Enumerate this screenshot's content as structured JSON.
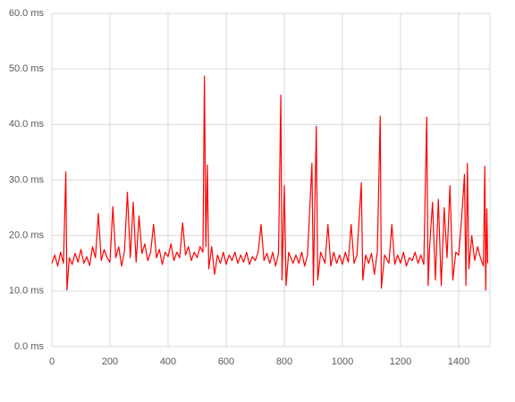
{
  "chart_data": {
    "type": "line",
    "x": [
      0,
      10,
      20,
      30,
      40,
      48,
      52,
      60,
      70,
      80,
      90,
      100,
      110,
      120,
      130,
      140,
      150,
      160,
      170,
      180,
      190,
      200,
      210,
      220,
      230,
      240,
      250,
      260,
      270,
      280,
      290,
      300,
      310,
      320,
      330,
      340,
      350,
      360,
      370,
      380,
      390,
      400,
      410,
      420,
      430,
      440,
      450,
      460,
      470,
      480,
      490,
      500,
      510,
      520,
      525,
      530,
      535,
      540,
      550,
      560,
      570,
      580,
      590,
      600,
      610,
      620,
      630,
      640,
      650,
      660,
      670,
      680,
      690,
      700,
      710,
      720,
      730,
      740,
      750,
      760,
      770,
      780,
      788,
      792,
      800,
      806,
      815,
      830,
      840,
      850,
      860,
      870,
      880,
      895,
      900,
      910,
      915,
      925,
      940,
      950,
      960,
      970,
      980,
      990,
      1000,
      1010,
      1020,
      1030,
      1040,
      1050,
      1065,
      1070,
      1080,
      1090,
      1100,
      1110,
      1120,
      1130,
      1134,
      1145,
      1160,
      1170,
      1180,
      1190,
      1200,
      1210,
      1220,
      1230,
      1240,
      1250,
      1260,
      1270,
      1280,
      1290,
      1295,
      1300,
      1310,
      1320,
      1330,
      1340,
      1350,
      1360,
      1370,
      1380,
      1390,
      1400,
      1410,
      1420,
      1425,
      1430,
      1435,
      1445,
      1455,
      1465,
      1475,
      1485,
      1490,
      1493,
      1497,
      1500
    ],
    "values": [
      15,
      16.5,
      14.5,
      17,
      15,
      31.5,
      10.2,
      16,
      14.8,
      16.8,
      15.2,
      17.5,
      15,
      16.2,
      14.6,
      18,
      16,
      24,
      15.5,
      17.5,
      16,
      15.2,
      25.2,
      16,
      18,
      14.5,
      17.2,
      27.8,
      16,
      26,
      15.2,
      23.5,
      16.8,
      18.5,
      15.5,
      17,
      22,
      16,
      17.5,
      14.8,
      17,
      16.2,
      18.5,
      15.5,
      17,
      16,
      22.3,
      16.5,
      18,
      15.5,
      17,
      16,
      18,
      17,
      48.7,
      18,
      32.7,
      14,
      18,
      13,
      16.5,
      15,
      17,
      14.8,
      16.5,
      15.5,
      17,
      15,
      16.5,
      15.2,
      17,
      14.8,
      16.2,
      15.5,
      17,
      22,
      15.5,
      16.8,
      15,
      17,
      14.5,
      16.8,
      45.3,
      12,
      29,
      11,
      17,
      15,
      16.5,
      15,
      17,
      14.5,
      16.5,
      33,
      11,
      39.7,
      12,
      17,
      15,
      22,
      14.5,
      17,
      15,
      16.5,
      14.8,
      17,
      15.2,
      22,
      15,
      16.5,
      29.5,
      12,
      16.5,
      15,
      16.8,
      13,
      17,
      41.5,
      10.5,
      16.5,
      15,
      22,
      14.8,
      16.5,
      15,
      17,
      14.5,
      16,
      15.5,
      17,
      15,
      16.5,
      14.8,
      41.3,
      11,
      18,
      26,
      12,
      26.5,
      11,
      25,
      16,
      29,
      12,
      17,
      16.5,
      23,
      31,
      11,
      33,
      14,
      20,
      15.5,
      18,
      16,
      14.5,
      32.5,
      10.2,
      24.8,
      15
    ],
    "color": "#ff0000",
    "xlim": [
      0,
      1500
    ],
    "xticks": [
      0,
      200,
      400,
      600,
      800,
      1000,
      1200,
      1400
    ],
    "ylim": [
      0,
      60
    ],
    "yticks": [
      {
        "value": 0,
        "label": "0.0 ms"
      },
      {
        "value": 10,
        "label": "10.0 ms"
      },
      {
        "value": 20,
        "label": "20.0 ms"
      },
      {
        "value": 30,
        "label": "30.0 ms"
      },
      {
        "value": 40,
        "label": "40.0 ms"
      },
      {
        "value": 50,
        "label": "50.0 ms"
      },
      {
        "value": 60,
        "label": "60.0 ms"
      }
    ],
    "grid": true
  }
}
